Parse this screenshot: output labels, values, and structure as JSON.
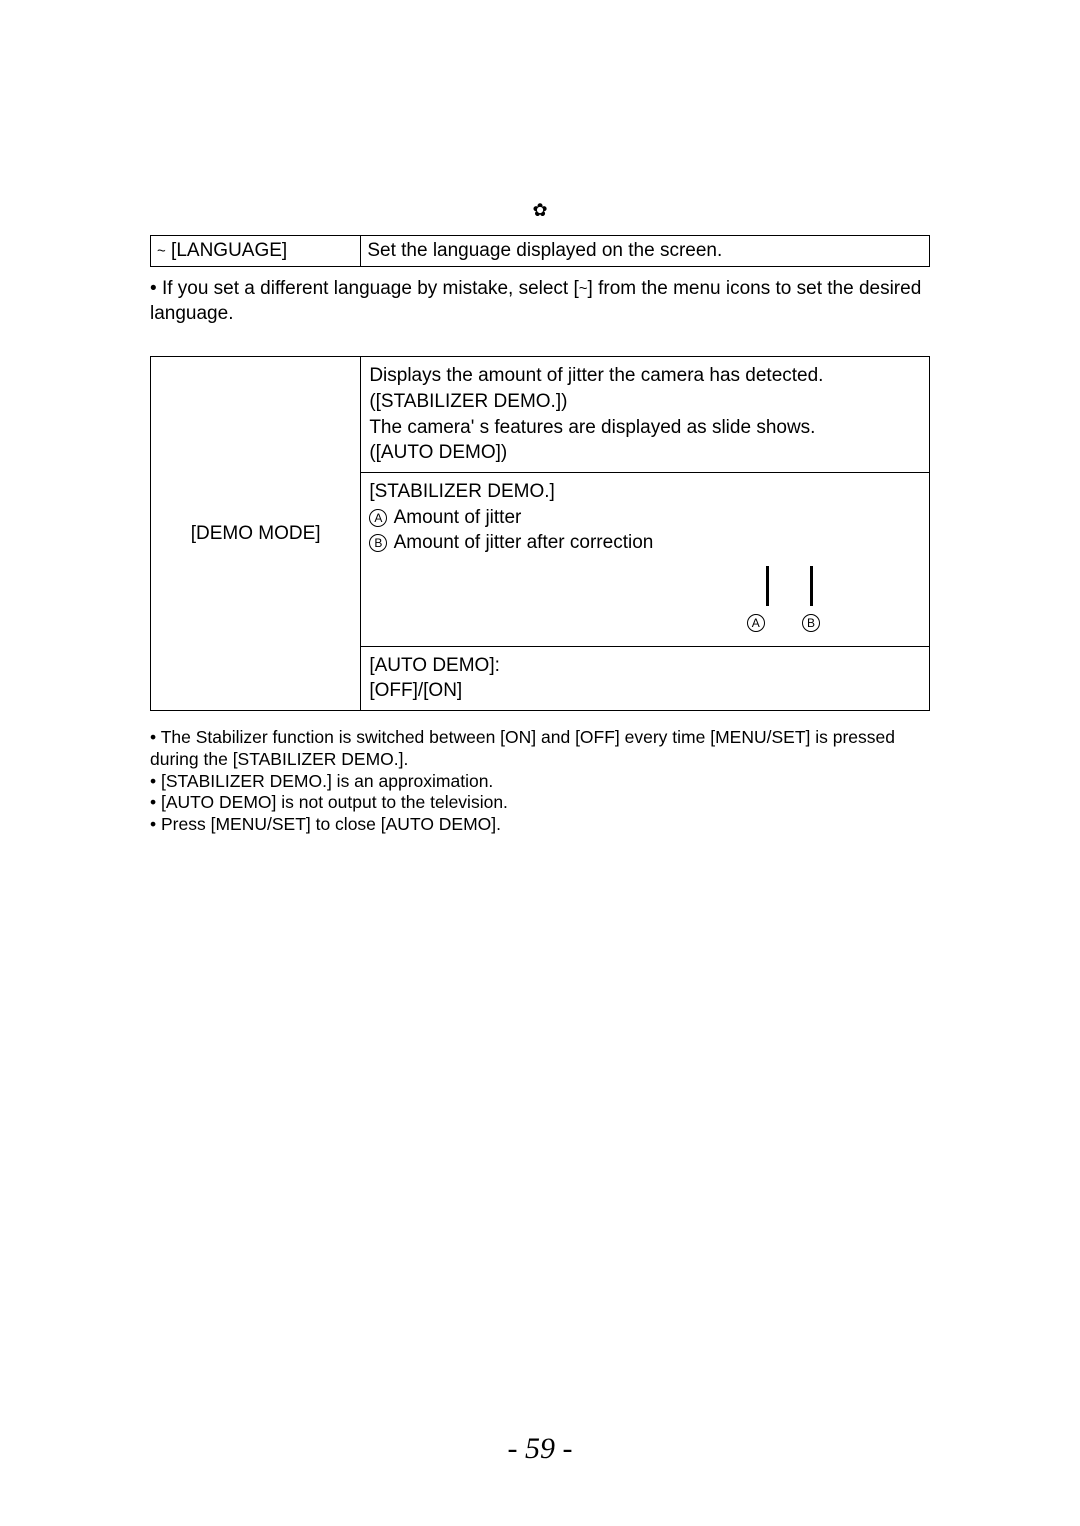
{
  "divider_icon": "✿",
  "language_row": {
    "icon": "🅰",
    "label": "[LANGUAGE]",
    "desc": "Set the language displayed on the screen."
  },
  "language_note": {
    "prefix": "If you set a different language by mistake, select [",
    "icon_name": "language-icon",
    "suffix": "] from the menu icons to set the desired language."
  },
  "demo": {
    "label": "[DEMO MODE]",
    "top_cell": [
      "Displays the amount of jitter the camera has detected.",
      "([STABILIZER DEMO.])",
      "The camera' s features are displayed as slide shows.",
      "([AUTO DEMO])"
    ],
    "mid_heading": "[STABILIZER DEMO.]",
    "item_a": "Amount of jitter",
    "item_b": "Amount of jitter after correction",
    "labels": {
      "a": "A",
      "b": "B"
    },
    "bottom_cell": [
      "[AUTO DEMO]:",
      "[OFF]/[ON]"
    ]
  },
  "notes": [
    "The Stabilizer function is switched between [ON] and [OFF] every time [MENU/SET] is pressed during the [STABILIZER DEMO.].",
    "[STABILIZER DEMO.] is an approximation.",
    "[AUTO DEMO] is not output to the television.",
    "Press [MENU/SET] to close [AUTO DEMO]."
  ],
  "page_number": "- 59 -"
}
